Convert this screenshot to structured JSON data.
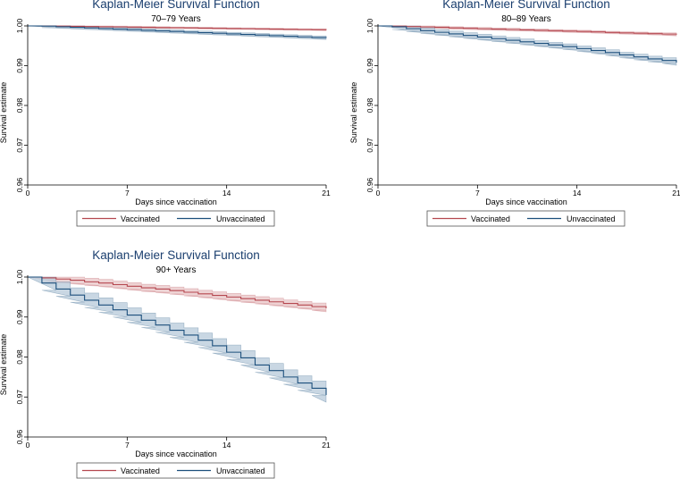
{
  "figure": {
    "chart_data": [
      {
        "type": "line",
        "title": "Kaplan-Meier Survival Function",
        "subtitle": "70–79 Years",
        "xlabel": "Days since vaccination",
        "ylabel": "Survival estimate",
        "xlim": [
          0,
          21
        ],
        "ylim": [
          0.96,
          1.0
        ],
        "x_ticks": [
          0,
          7,
          14,
          21
        ],
        "y_ticks": [
          "0.96",
          "0.97",
          "0.98",
          "0.99",
          "1.00"
        ],
        "legend": [
          "Vaccinated",
          "Unvaccinated"
        ],
        "legend_position": "bottom",
        "colors": {
          "Vaccinated": "#b5474f",
          "Unvaccinated": "#1c4f7c",
          "Vaccinated_ci": "#e8c4c6",
          "Unvaccinated_ci": "#b7c9d9"
        },
        "series": [
          {
            "name": "Vaccinated",
            "x": [
              0,
              1,
              2,
              3,
              4,
              5,
              6,
              7,
              8,
              9,
              10,
              11,
              12,
              13,
              14,
              15,
              16,
              17,
              18,
              19,
              20,
              21
            ],
            "values": [
              1.0,
              1.0,
              0.99995,
              0.9999,
              0.99985,
              0.9998,
              0.99975,
              0.9997,
              0.99965,
              0.9996,
              0.99955,
              0.9995,
              0.99945,
              0.9994,
              0.99935,
              0.9993,
              0.99925,
              0.9992,
              0.99915,
              0.9991,
              0.99905,
              0.999
            ],
            "ci_halfwidth": 0.0002
          },
          {
            "name": "Unvaccinated",
            "x": [
              0,
              1,
              2,
              3,
              4,
              5,
              6,
              7,
              8,
              9,
              10,
              11,
              12,
              13,
              14,
              15,
              16,
              17,
              18,
              19,
              20,
              21
            ],
            "values": [
              1.0,
              0.99995,
              0.9998,
              0.99965,
              0.9995,
              0.99935,
              0.9992,
              0.99905,
              0.9989,
              0.99875,
              0.9986,
              0.99845,
              0.9983,
              0.99815,
              0.998,
              0.99785,
              0.9977,
              0.99755,
              0.9974,
              0.99725,
              0.9971,
              0.997
            ],
            "ci_halfwidth": 0.0004
          }
        ]
      },
      {
        "type": "line",
        "title": "Kaplan-Meier Survival Function",
        "subtitle": "80–89 Years",
        "xlabel": "Days since vaccination",
        "ylabel": "Survival estimate",
        "xlim": [
          0,
          21
        ],
        "ylim": [
          0.96,
          1.0
        ],
        "x_ticks": [
          0,
          7,
          14,
          21
        ],
        "y_ticks": [
          "0.96",
          "0.97",
          "0.98",
          "0.99",
          "1.00"
        ],
        "legend": [
          "Vaccinated",
          "Unvaccinated"
        ],
        "legend_position": "bottom",
        "colors": {
          "Vaccinated": "#b5474f",
          "Unvaccinated": "#1c4f7c",
          "Vaccinated_ci": "#e8c4c6",
          "Unvaccinated_ci": "#b7c9d9"
        },
        "series": [
          {
            "name": "Vaccinated",
            "x": [
              0,
              1,
              2,
              3,
              4,
              5,
              6,
              7,
              8,
              9,
              10,
              11,
              12,
              13,
              14,
              15,
              16,
              17,
              18,
              19,
              20,
              21
            ],
            "values": [
              1.0,
              0.99995,
              0.99985,
              0.99975,
              0.99965,
              0.9995,
              0.9994,
              0.9993,
              0.9992,
              0.9991,
              0.999,
              0.9989,
              0.9988,
              0.9987,
              0.9986,
              0.9985,
              0.99835,
              0.99825,
              0.99815,
              0.99805,
              0.99795,
              0.9978
            ],
            "ci_halfwidth": 0.0003
          },
          {
            "name": "Unvaccinated",
            "x": [
              0,
              1,
              2,
              3,
              4,
              5,
              6,
              7,
              8,
              9,
              10,
              11,
              12,
              13,
              14,
              15,
              16,
              17,
              18,
              19,
              20,
              21
            ],
            "values": [
              1.0,
              0.9998,
              0.9993,
              0.9988,
              0.9984,
              0.998,
              0.9976,
              0.9972,
              0.9968,
              0.9964,
              0.996,
              0.9956,
              0.9952,
              0.9948,
              0.9943,
              0.9938,
              0.9933,
              0.9927,
              0.9922,
              0.9917,
              0.9913,
              0.9908
            ],
            "ci_halfwidth": 0.0007
          }
        ]
      },
      {
        "type": "line",
        "title": "Kaplan-Meier Survival Function",
        "subtitle": "90+ Years",
        "xlabel": "Days since vaccination",
        "ylabel": "Survival estimate",
        "xlim": [
          0,
          21
        ],
        "ylim": [
          0.96,
          1.0
        ],
        "x_ticks": [
          0,
          7,
          14,
          21
        ],
        "y_ticks": [
          "0.96",
          "0.97",
          "0.98",
          "0.99",
          "1.00"
        ],
        "legend": [
          "Vaccinated",
          "Unvaccinated"
        ],
        "legend_position": "bottom",
        "colors": {
          "Vaccinated": "#b5474f",
          "Unvaccinated": "#1c4f7c",
          "Vaccinated_ci": "#e8c4c6",
          "Unvaccinated_ci": "#b7c9d9"
        },
        "series": [
          {
            "name": "Vaccinated",
            "x": [
              0,
              1,
              2,
              3,
              4,
              5,
              6,
              7,
              8,
              9,
              10,
              11,
              12,
              13,
              14,
              15,
              16,
              17,
              18,
              19,
              20,
              21
            ],
            "values": [
              1.0,
              0.9998,
              0.9995,
              0.9992,
              0.9988,
              0.9985,
              0.9981,
              0.9977,
              0.9973,
              0.997,
              0.9966,
              0.9962,
              0.9958,
              0.9954,
              0.995,
              0.9946,
              0.9942,
              0.9938,
              0.9934,
              0.993,
              0.9926,
              0.9922
            ],
            "ci_halfwidth": 0.0009
          },
          {
            "name": "Unvaccinated",
            "x": [
              0,
              1,
              2,
              3,
              4,
              5,
              6,
              7,
              8,
              9,
              10,
              11,
              12,
              13,
              14,
              15,
              16,
              17,
              18,
              19,
              20,
              21
            ],
            "values": [
              1.0,
              0.9985,
              0.997,
              0.9955,
              0.9942,
              0.993,
              0.9918,
              0.9905,
              0.9892,
              0.988,
              0.9867,
              0.9855,
              0.9842,
              0.9828,
              0.9812,
              0.9798,
              0.978,
              0.9766,
              0.975,
              0.9735,
              0.9722,
              0.9705
            ],
            "ci_halfwidth": 0.0018
          }
        ]
      }
    ]
  }
}
